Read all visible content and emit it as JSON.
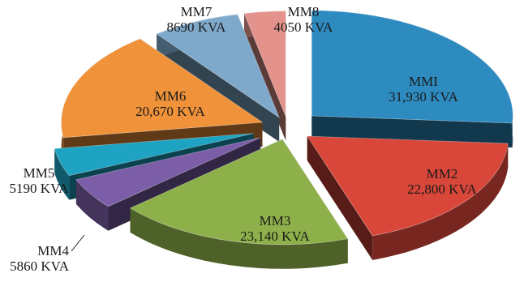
{
  "chart_data": {
    "type": "pie",
    "style": "3d-exploded",
    "title": "",
    "unit": "KVA",
    "slices": [
      {
        "name": "MMI",
        "label": "MMI",
        "value_label": "31,930 KVA",
        "value": 31930,
        "color": "#2E8BC0",
        "label_placement": "inside"
      },
      {
        "name": "MM2",
        "label": "MM2",
        "value_label": "22,800 KVA",
        "value": 22800,
        "color": "#D9473A",
        "label_placement": "inside"
      },
      {
        "name": "MM3",
        "label": "MM3",
        "value_label": "23,140 KVA",
        "value": 23140,
        "color": "#8DB04A",
        "label_placement": "inside"
      },
      {
        "name": "MM4",
        "label": "MM4",
        "value_label": "5860 KVA",
        "value": 5860,
        "color": "#7B5EA7",
        "label_placement": "outside-left-leader"
      },
      {
        "name": "MM5",
        "label": "MM5",
        "value_label": "5190 KVA",
        "value": 5190,
        "color": "#1FA3C2",
        "label_placement": "outside-left"
      },
      {
        "name": "MM6",
        "label": "MM6",
        "value_label": "20,670 KVA",
        "value": 20670,
        "color": "#F0923A",
        "label_placement": "inside"
      },
      {
        "name": "MM7",
        "label": "MM7",
        "value_label": "8690 KVA",
        "value": 8690,
        "color": "#7FA9CB",
        "label_placement": "outside-top"
      },
      {
        "name": "MM8",
        "label": "MM8",
        "value_label": "4050 KVA",
        "value": 4050,
        "color": "#E3938C",
        "label_placement": "outside-top"
      }
    ]
  }
}
